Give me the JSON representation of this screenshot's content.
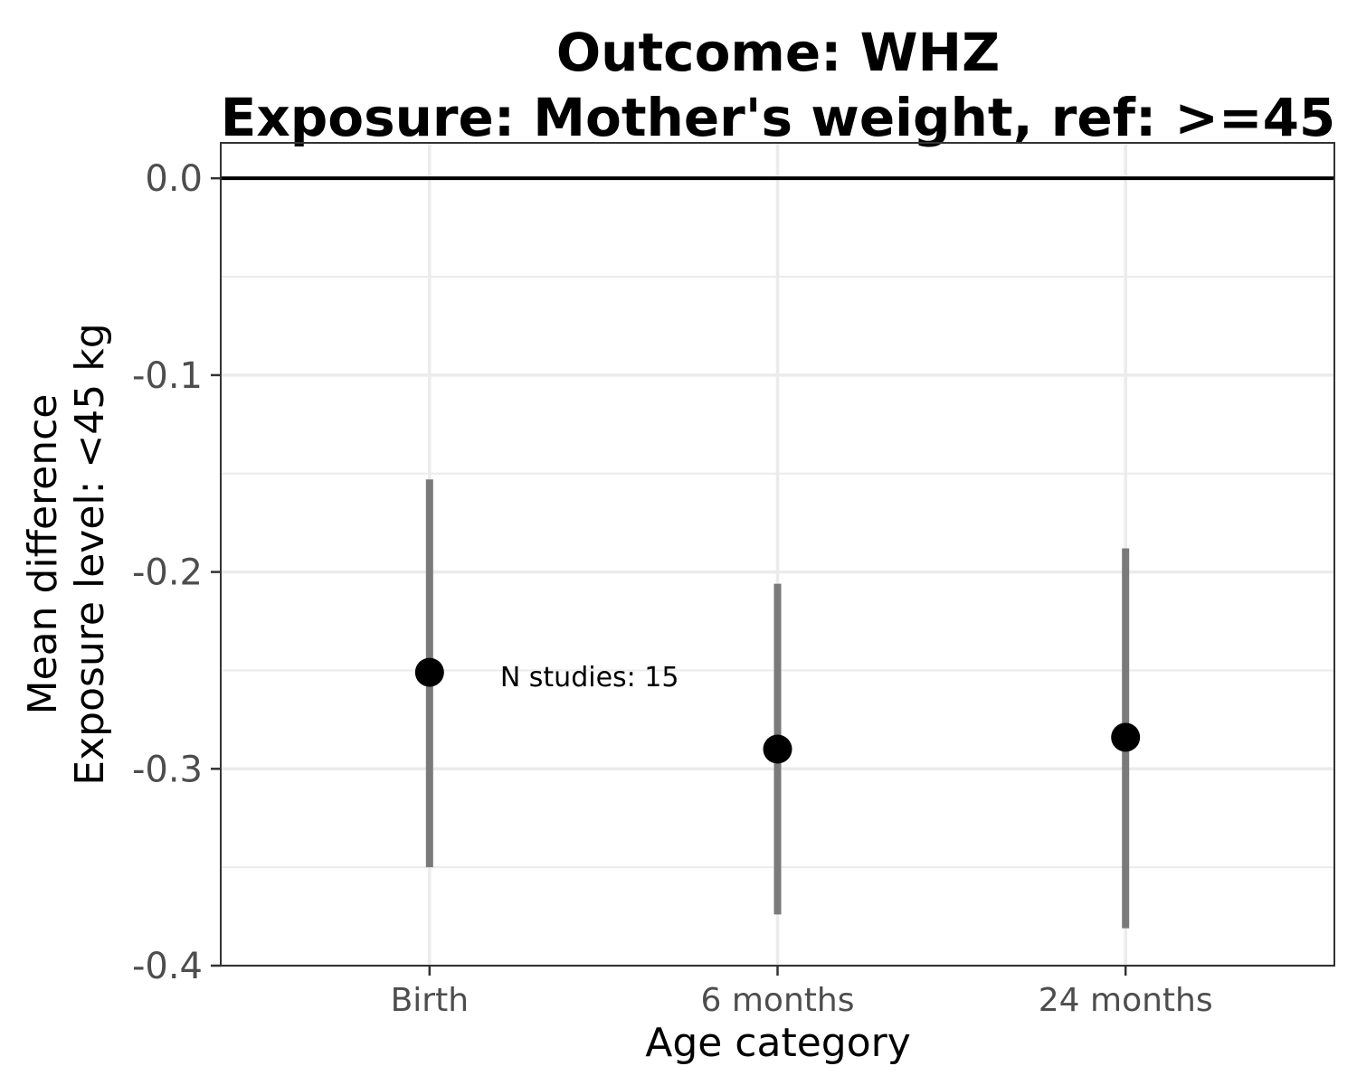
{
  "chart_data": {
    "type": "scatter",
    "title_line1": "Outcome: WHZ",
    "title_line2": "Exposure: Mother's weight, ref: >=45",
    "xlabel": "Age category",
    "ylabel_line1": "Mean difference",
    "ylabel_line2": "Exposure level: <45 kg",
    "categories": [
      "Birth",
      "6 months",
      "24 months"
    ],
    "points": [
      {
        "category": "Birth",
        "estimate": -0.251,
        "ci_lower": -0.35,
        "ci_upper": -0.153
      },
      {
        "category": "6 months",
        "estimate": -0.29,
        "ci_lower": -0.374,
        "ci_upper": -0.206
      },
      {
        "category": "24 months",
        "estimate": -0.284,
        "ci_lower": -0.381,
        "ci_upper": -0.188
      }
    ],
    "yticks": [
      "0.0",
      "-0.1",
      "-0.2",
      "-0.3",
      "-0.4"
    ],
    "ytick_values": [
      0.0,
      -0.1,
      -0.2,
      -0.3,
      -0.4
    ],
    "ylim": [
      -0.4,
      0.018
    ],
    "reference_line": 0.0,
    "annotation": "N studies: 15",
    "annotation_category": "Birth",
    "annotation_y": -0.253,
    "grid": true,
    "colors": {
      "point": "#000000",
      "errorbar": "#7a7a7a",
      "grid": "#ebebeb",
      "reference": "#000000",
      "panel_border": "#333333"
    }
  }
}
